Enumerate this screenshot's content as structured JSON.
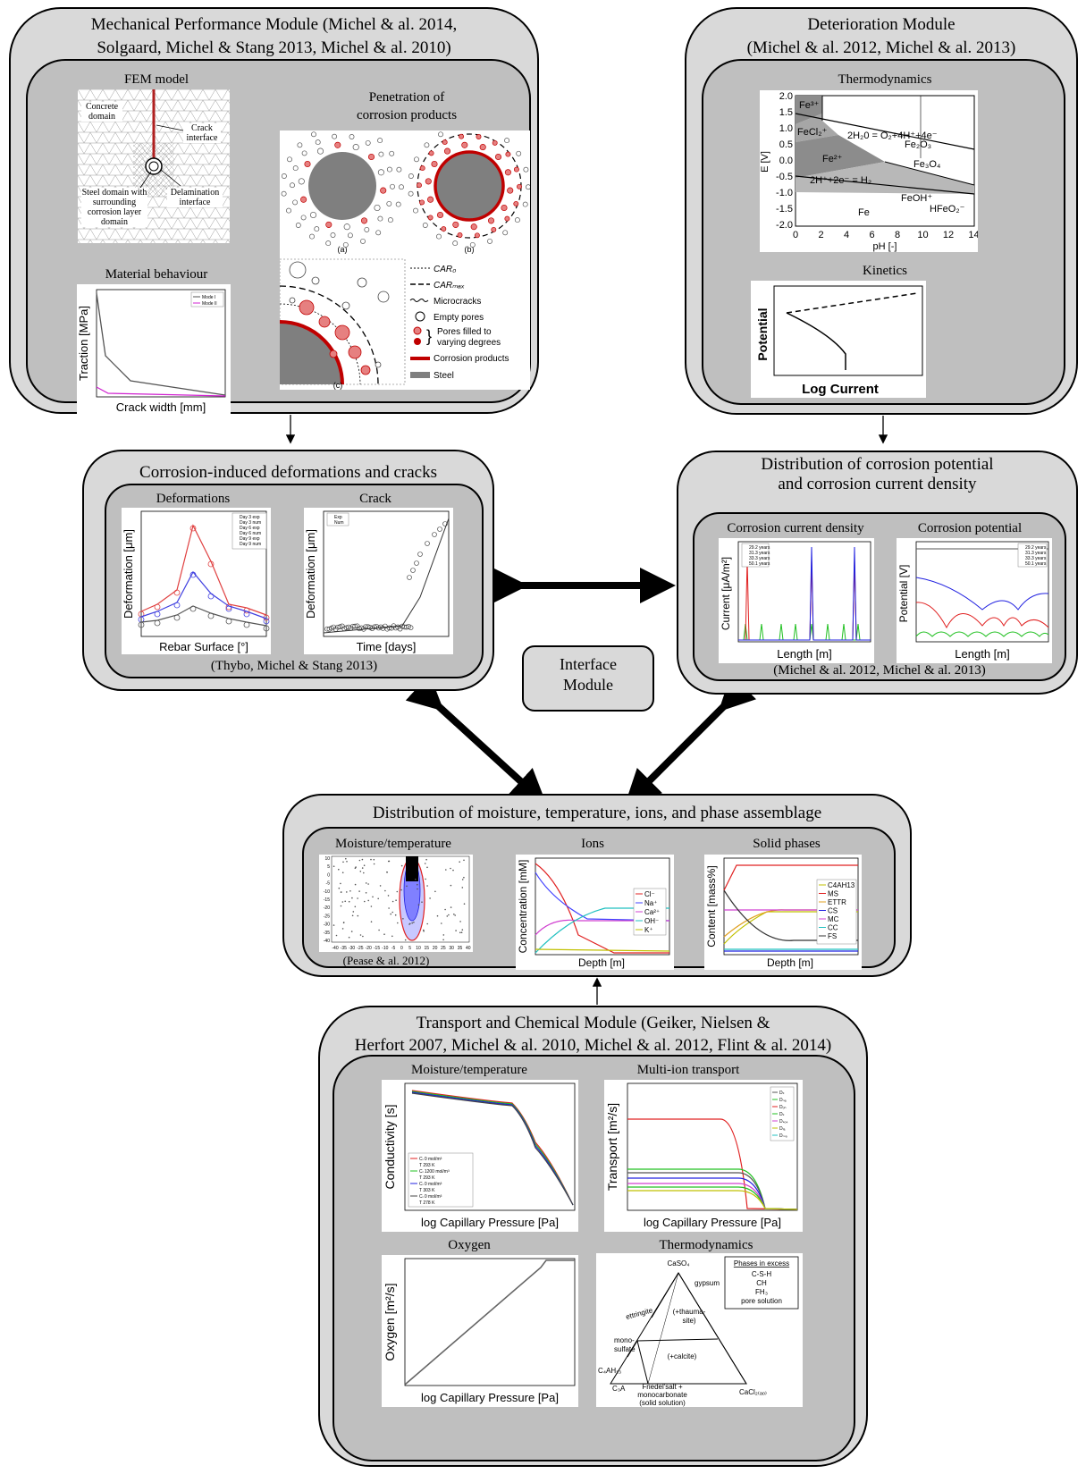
{
  "mechanical": {
    "title_line1": "Mechanical Performance Module  (Michel & al. 2014,",
    "title_line2": "Solgaard, Michel & Stang 2013, Michel & al. 2010)",
    "fem_title": "FEM model",
    "fem_labels": {
      "concrete": "Concrete domain",
      "crack": "Crack interface",
      "steel": "Steel domain with surrounding corrosion layer domain",
      "delam": "Delamination interface"
    },
    "material_title": "Material behaviour",
    "material_xlabel": "Crack width [mm]",
    "material_ylabel": "Traction [MPa]",
    "material_legend": [
      "Mode I",
      "Mode II"
    ],
    "penetration_title_line1": "Penetration of",
    "penetration_title_line2": "corrosion products",
    "pen_sub": [
      "(a)",
      "(b)",
      "(c)"
    ],
    "pen_legend": [
      "CAR₀",
      "CARₘₐₓ",
      "Microcracks",
      "Empty pores",
      "Pores filled to",
      "varying degrees",
      "Corrosion products",
      "Steel"
    ]
  },
  "deterioration": {
    "title_line1": "Deterioration Module",
    "title_line2": "(Michel & al. 2012, Michel & al. 2013)",
    "thermo_title": "Thermodynamics",
    "pourbaix": {
      "xlabel": "pH [-]",
      "ylabel": "E [V]",
      "yticks": [
        "2.0",
        "1.5",
        "1.0",
        "0.5",
        "0.0",
        "-0.5",
        "-1.0",
        "-1.5",
        "-2.0"
      ],
      "xticks": [
        "0",
        "2",
        "4",
        "6",
        "8",
        "10",
        "12",
        "14"
      ],
      "labels": [
        "Fe³⁺",
        "Fe₂O₃",
        "FeCl₂⁺",
        "2H₂0 = O₂+4H⁺+4e⁻",
        "Fe²⁺",
        "Fe₃O₄",
        "2H⁺+2e⁻ = H₂",
        "FeOH⁺",
        "HFeO₂⁻",
        "Fe"
      ]
    },
    "kinetics_title": "Kinetics",
    "kinetics_ylabel": "Potential",
    "kinetics_xlabel": "Log Current"
  },
  "corrosion_cracks": {
    "title": "Corrosion-induced deformations and cracks",
    "deform_title": "Deformations",
    "deform_xlabel": "Rebar Surface [°]",
    "deform_ylabel": "Deformation [μm]",
    "deform_legend": [
      "Day 3 exp",
      "Day 3 num",
      "Day 6 exp",
      "Day 6 num",
      "Day 9 exp",
      "Day 9 num"
    ],
    "crack_title": "Crack",
    "crack_xlabel": "Time [days]",
    "crack_ylabel": "Deformation [μm]",
    "crack_legend": [
      "Exp",
      "Num"
    ],
    "citation": "(Thybo, Michel & Stang 2013)"
  },
  "distribution_corrosion": {
    "title_line1": "Distribution of corrosion potential",
    "title_line2": "and corrosion current density",
    "ccd_title": "Corrosion current density",
    "ccd_xlabel": "Length [m]",
    "ccd_ylabel": "Current [μA/m²]",
    "cp_title": "Corrosion potential",
    "cp_xlabel": "Length [m]",
    "cp_ylabel": "Potential [V]",
    "legend": [
      "29.2 years",
      "31.3 years",
      "33.3 years",
      "50.1 years"
    ],
    "citation": "(Michel & al. 2012, Michel & al. 2013)"
  },
  "interface": {
    "line1": "Interface",
    "line2": "Module"
  },
  "distribution_moisture": {
    "title": "Distribution of moisture, temperature, ions, and phase assemblage",
    "mt_title": "Moisture/temperature",
    "mt_yticks": [
      "10",
      "5",
      "0",
      "-5",
      "-10",
      "-15",
      "-20",
      "-25",
      "-30",
      "-35",
      "-40"
    ],
    "mt_xticks": [
      "-40",
      "-35",
      "-30",
      "-25",
      "-20",
      "-15",
      "-10",
      "-5",
      "0",
      "5",
      "10",
      "15",
      "20",
      "25",
      "30",
      "35",
      "40"
    ],
    "mt_citation": "(Pease & al. 2012)",
    "ions_title": "Ions",
    "ions_xlabel": "Depth [m]",
    "ions_ylabel": "Concentration [mM]",
    "ions_legend": [
      "Cl⁻",
      "Na⁺",
      "Ca²⁺",
      "OH⁻",
      "K⁺"
    ],
    "solid_title": "Solid phases",
    "solid_xlabel": "Depth [m]",
    "solid_ylabel": "Content [mass%]",
    "solid_legend": [
      "C4AH13",
      "MS",
      "ETTR",
      "CS",
      "MC",
      "CC",
      "FS"
    ]
  },
  "transport": {
    "title_line1": "Transport and Chemical Module (Geiker, Nielsen &",
    "title_line2": "Herfort 2007, Michel & al. 2010, Michel & al. 2012, Flint & al. 2014)",
    "mt_title": "Moisture/temperature",
    "mt_xlabel": "log Capillary Pressure [Pa]",
    "mt_ylabel": "Conductivity [s]",
    "mt_legend": [
      "Cₗ 0 mol/m³",
      "T 293 K",
      "Cₗ 1200 mol/m³",
      "T 293 K",
      "Cₗ 0 mol/m³",
      "T 303 K",
      "Cₗ 0 mol/m³",
      "T 278 K"
    ],
    "mit_title": "Multi-ion transport",
    "mit_xlabel": "log Capillary Pressure [Pa]",
    "mit_ylabel": "Transport [m²/s]",
    "mit_legend": [
      "Dₗₗ",
      "Dₙₐ",
      "Dₒₕ",
      "Dₖ",
      "Dₛₒ₄",
      "Dₗₐ",
      "Dₘ₉"
    ],
    "oxy_title": "Oxygen",
    "oxy_xlabel": "log Capillary Pressure [Pa]",
    "oxy_ylabel": "Oxygen [m²/s]",
    "thermo_title": "Thermodynamics",
    "tern": {
      "top": "CaSO₄",
      "gypsum": "gypsum",
      "ettringite": "ettringite",
      "thauma1": "(+thauma-",
      "thauma2": "site)",
      "mono1": "mono-",
      "mono2": "sulfate",
      "calcite": "(+calcite)",
      "c4ah": "C₄AH₁₃",
      "c3a": "C₃A",
      "friedel1": "Friedel'salt +",
      "friedel2": "monocarbonate",
      "friedel3": "(solid solution)",
      "cacl": "CaCl₂₍ₐₒ₎",
      "excess_title": "Phases in excess",
      "excess": [
        "C-S-H",
        "CH",
        "FH₃",
        "pore solution"
      ]
    }
  }
}
